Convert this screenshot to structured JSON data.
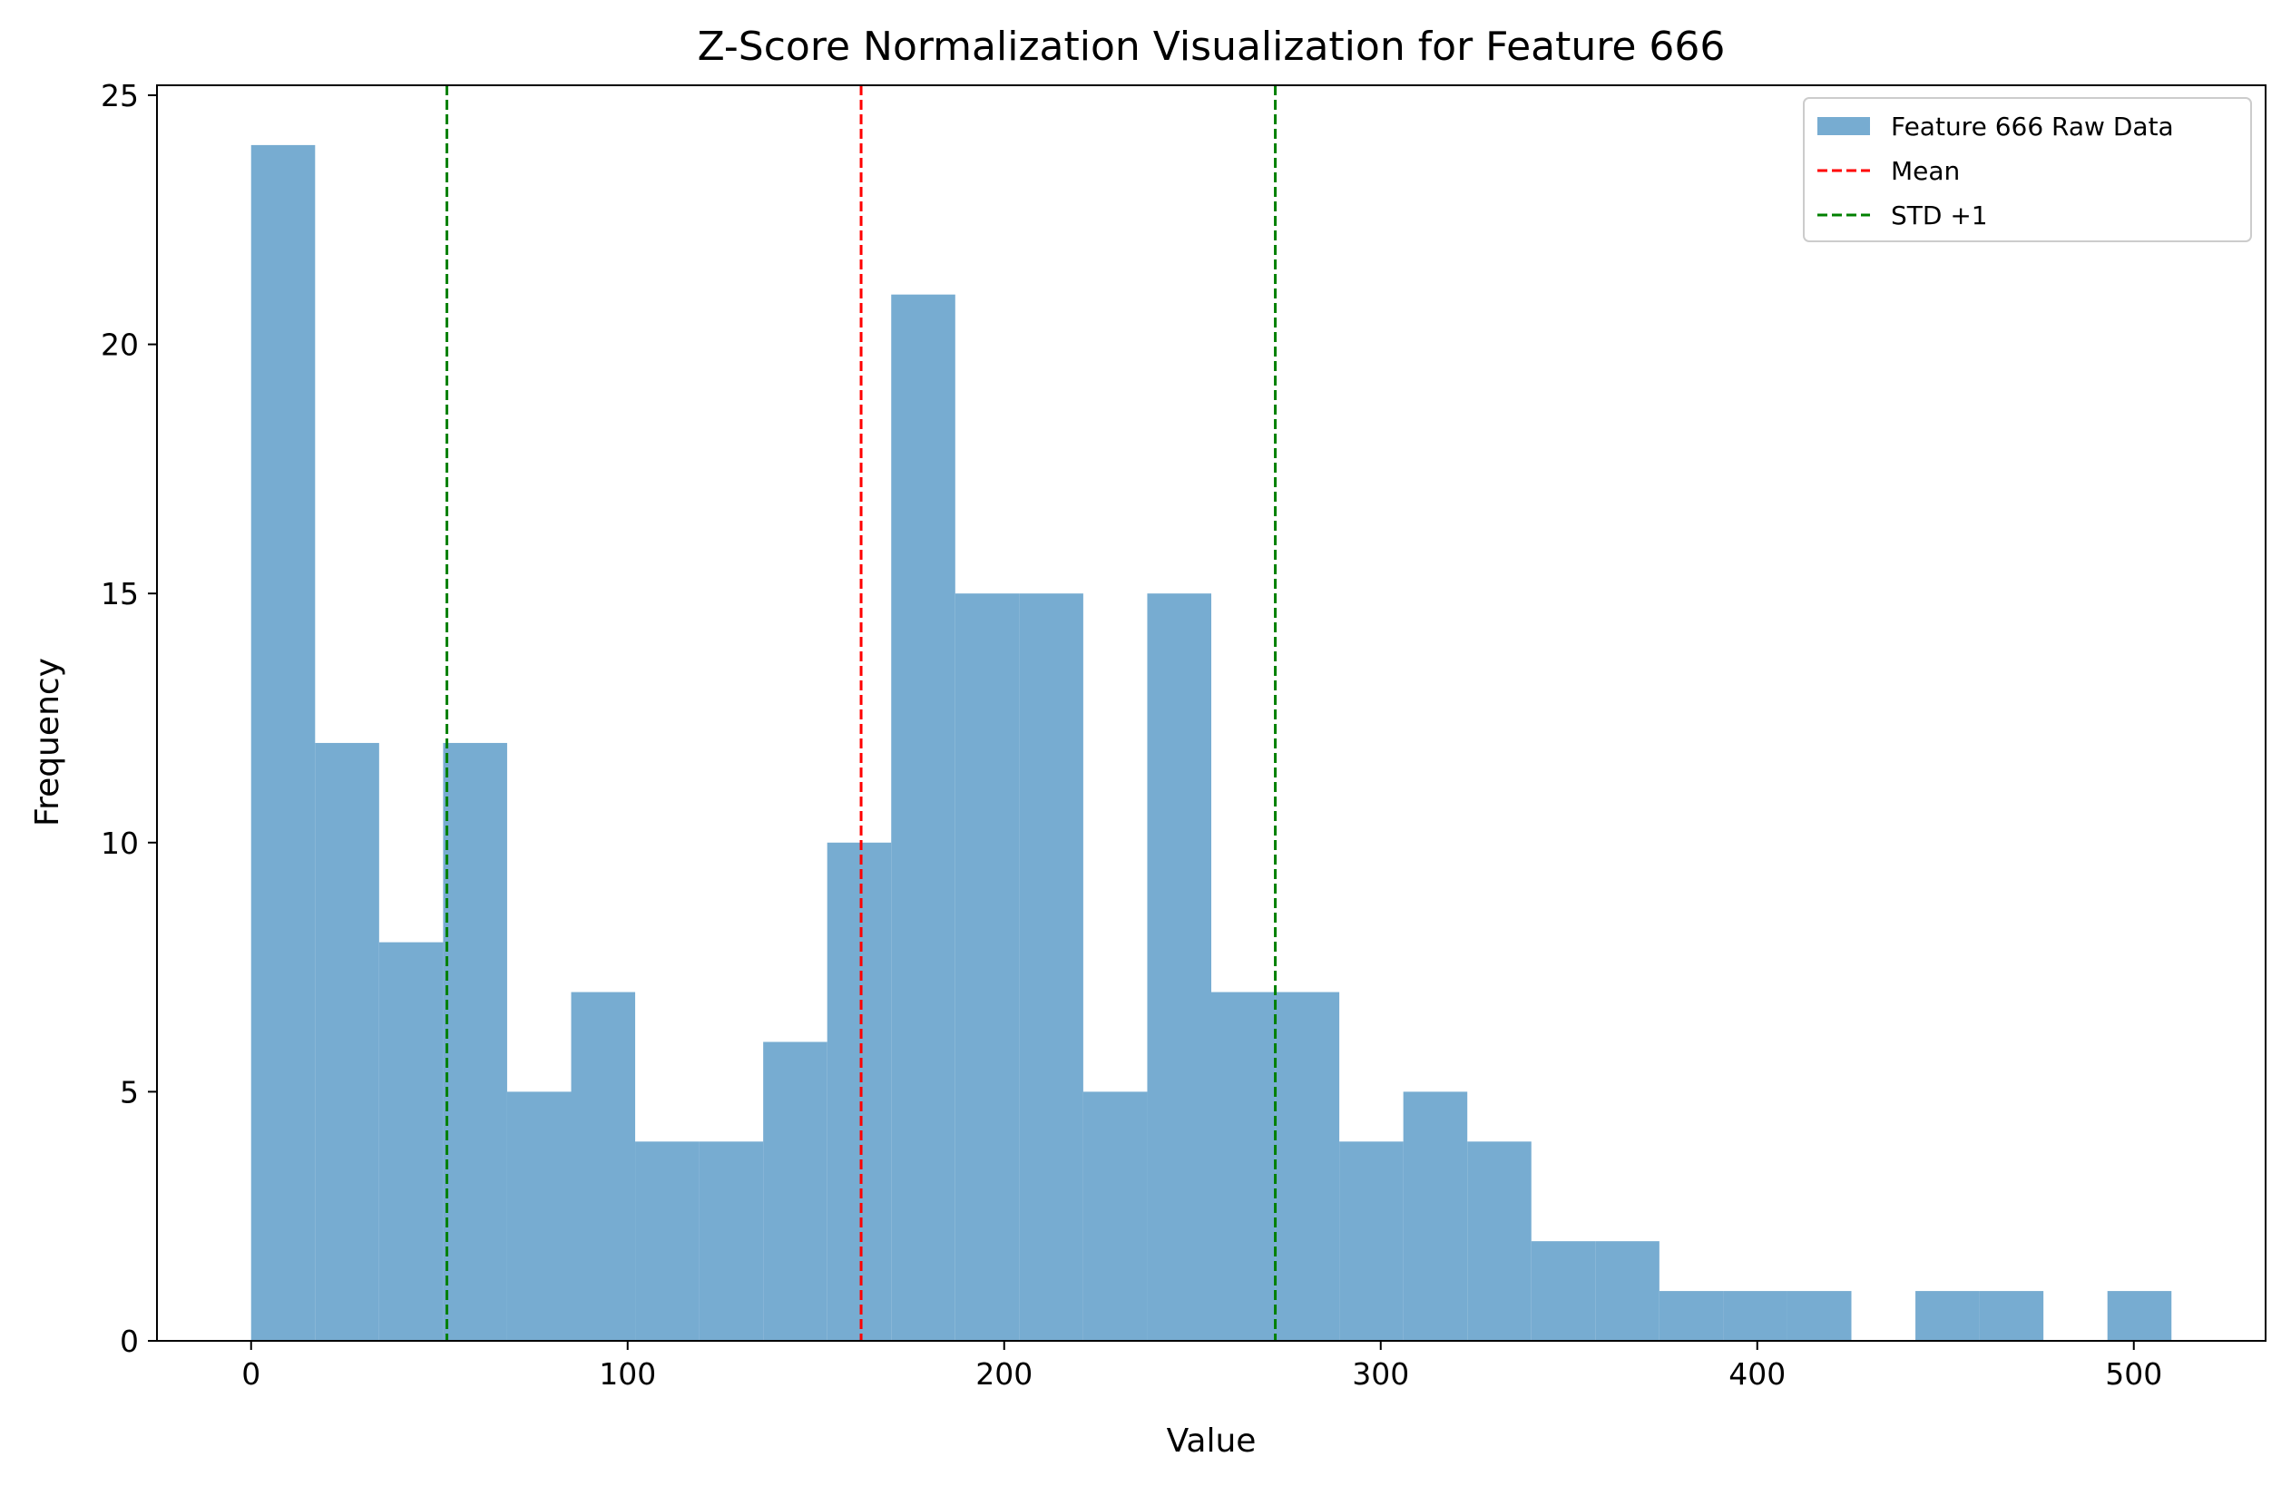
{
  "chart_data": {
    "type": "bar",
    "title": "Z-Score Normalization Visualization for Feature 666",
    "xlabel": "Value",
    "ylabel": "Frequency",
    "xlim": [
      -25,
      535
    ],
    "ylim": [
      0,
      25.2
    ],
    "xticks": [
      0,
      100,
      200,
      300,
      400,
      500
    ],
    "yticks": [
      0,
      5,
      10,
      15,
      20,
      25
    ],
    "grid": false,
    "legend_position": "top-right",
    "bar_color": "#77acd1",
    "series": [
      {
        "name": "Feature 666 Raw Data",
        "bin_edges": [
          0,
          17,
          34,
          51,
          68,
          85,
          102,
          119,
          136,
          153,
          170,
          187,
          204,
          221,
          238,
          255,
          272,
          289,
          306,
          323,
          340,
          357,
          374,
          391,
          408,
          425,
          442,
          459,
          476,
          493,
          510
        ],
        "counts": [
          24,
          12,
          8,
          12,
          5,
          7,
          4,
          4,
          6,
          10,
          21,
          15,
          15,
          5,
          15,
          7,
          7,
          4,
          5,
          4,
          2,
          2,
          1,
          1,
          1,
          0,
          1,
          1,
          0,
          1
        ]
      }
    ],
    "reference_lines": [
      {
        "name": "Mean",
        "x": 162,
        "color": "#ff0000",
        "style": "dashed"
      },
      {
        "name": "STD +1",
        "x": 52,
        "color": "#008000",
        "style": "dashed"
      },
      {
        "name": "STD +1",
        "x": 272,
        "color": "#008000",
        "style": "dashed"
      }
    ],
    "legend": [
      {
        "label": "Feature 666 Raw Data",
        "kind": "patch",
        "color": "#77acd1"
      },
      {
        "label": "Mean",
        "kind": "dashed-line",
        "color": "#ff0000"
      },
      {
        "label": "STD +1",
        "kind": "dashed-line",
        "color": "#008000"
      }
    ]
  }
}
